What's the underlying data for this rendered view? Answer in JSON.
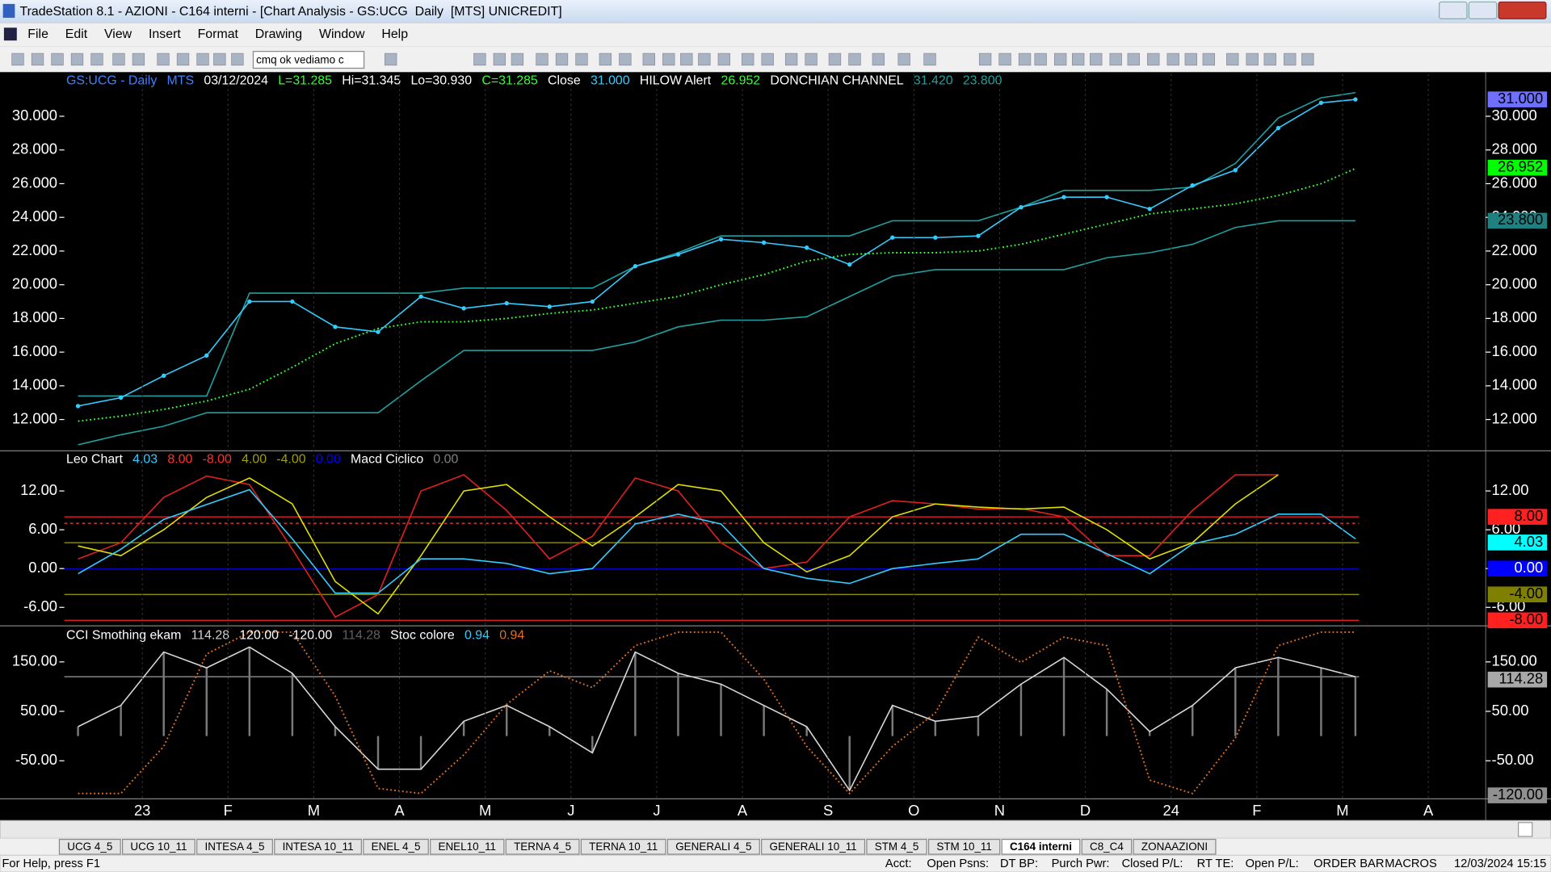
{
  "window": {
    "title": "TradeStation 8.1 - AZIONI - C164 interni - [Chart Analysis - GS:UCG  Daily  [MTS] UNICREDIT]"
  },
  "menu": [
    "File",
    "Edit",
    "View",
    "Insert",
    "Format",
    "Drawing",
    "Window",
    "Help"
  ],
  "toolbar": {
    "combobox": "cmq ok vediamo c"
  },
  "chart_data": [
    {
      "type": "line",
      "header": [
        {
          "text": "GS:UCG - Daily",
          "color": "#4080ff"
        },
        {
          "text": "MTS",
          "color": "#4080ff"
        },
        {
          "text": "03/12/2024",
          "color": "#ffffff"
        },
        {
          "text": "L=31.285",
          "color": "#33ff33"
        },
        {
          "text": "Hi=31.345",
          "color": "#ffffff"
        },
        {
          "text": "Lo=30.930",
          "color": "#ffffff"
        },
        {
          "text": "C=31.285",
          "color": "#33ff33"
        },
        {
          "text": "Close",
          "color": "#ffffff"
        },
        {
          "text": "31.000",
          "color": "#33ccff"
        },
        {
          "text": "HILOW Alert",
          "color": "#ffffff"
        },
        {
          "text": "26.952",
          "color": "#33ff33"
        },
        {
          "text": "DONCHIAN CHANNEL",
          "color": "#ffffff"
        },
        {
          "text": "31.420",
          "color": "#20a0a0"
        },
        {
          "text": "23.800",
          "color": "#20a0a0"
        }
      ],
      "x": [
        -0.75,
        -0.25,
        0.25,
        0.75,
        1.25,
        1.75,
        2.25,
        2.75,
        3.25,
        3.75,
        4.25,
        4.75,
        5.25,
        5.75,
        6.25,
        6.75,
        7.25,
        7.75,
        8.25,
        8.75,
        9.25,
        9.75,
        10.25,
        10.75,
        11.25,
        11.75,
        12.25,
        12.75,
        13.25,
        13.75,
        14.15
      ],
      "xlim": [
        -0.91,
        15.67
      ],
      "ylim": [
        10.2,
        32.5
      ],
      "yticks": [
        {
          "value": 12,
          "label": "12.000"
        },
        {
          "value": 14,
          "label": "14.000"
        },
        {
          "value": 16,
          "label": "16.000"
        },
        {
          "value": 18,
          "label": "18.000"
        },
        {
          "value": 20,
          "label": "20.000"
        },
        {
          "value": 22,
          "label": "22.000"
        },
        {
          "value": 24,
          "label": "24.000"
        },
        {
          "value": 26,
          "label": "26.000"
        },
        {
          "value": 28,
          "label": "28.000"
        },
        {
          "value": 30,
          "label": "30.000"
        }
      ],
      "series": [
        {
          "name": "DONCHIAN CHANNEL",
          "color": "#20a0a0",
          "values": [
            13.4,
            13.4,
            13.4,
            13.4,
            19.5,
            19.5,
            19.5,
            19.5,
            19.5,
            19.8,
            19.8,
            19.8,
            19.8,
            21.1,
            21.9,
            22.9,
            22.9,
            22.9,
            22.9,
            23.8,
            23.8,
            23.8,
            24.6,
            25.6,
            25.6,
            25.6,
            25.8,
            27.2,
            29.9,
            31.1,
            31.4
          ]
        },
        {
          "color": "#20a0a0",
          "values": [
            10.5,
            11.1,
            11.6,
            12.4,
            12.4,
            12.4,
            12.4,
            12.4,
            14.3,
            16.1,
            16.1,
            16.1,
            16.1,
            16.6,
            17.5,
            17.9,
            17.9,
            18.1,
            19.3,
            20.5,
            20.9,
            20.9,
            20.9,
            20.9,
            21.6,
            21.9,
            22.4,
            23.4,
            23.8,
            23.8,
            23.8
          ]
        },
        {
          "name": "HILOW Alert",
          "color": "#33ff33",
          "dash": true,
          "values": [
            11.9,
            12.2,
            12.6,
            13.1,
            13.8,
            15.1,
            16.5,
            17.4,
            17.8,
            17.8,
            18.0,
            18.3,
            18.5,
            18.9,
            19.3,
            20.0,
            20.6,
            21.4,
            21.8,
            21.9,
            21.9,
            22.0,
            22.4,
            23.0,
            23.6,
            24.2,
            24.5,
            24.8,
            25.3,
            26.0,
            26.9
          ]
        },
        {
          "name": "Close",
          "color": "#33ccff",
          "markers": true,
          "values": [
            12.8,
            13.3,
            14.6,
            15.8,
            19.0,
            19.0,
            17.5,
            17.2,
            19.3,
            18.6,
            18.9,
            18.7,
            19.0,
            21.1,
            21.8,
            22.7,
            22.5,
            22.2,
            21.2,
            22.8,
            22.8,
            22.9,
            24.6,
            25.2,
            25.2,
            24.5,
            25.9,
            26.8,
            29.3,
            30.8,
            31.0
          ]
        }
      ],
      "right_labels": [
        {
          "value": 31.0,
          "label": "31.000",
          "color": "#7070ff"
        },
        {
          "value": 26.952,
          "label": "26.952",
          "color": "#00ff00"
        },
        {
          "value": 23.8,
          "label": "23.800",
          "color": "#208080"
        }
      ]
    },
    {
      "type": "line",
      "header": [
        {
          "text": "Leo Chart",
          "color": "#ffffff"
        },
        {
          "text": "4.03",
          "color": "#33ccff"
        },
        {
          "text": "8.00",
          "color": "#ff3030"
        },
        {
          "text": "-8.00",
          "color": "#ff3030"
        },
        {
          "text": "4.00",
          "color": "#a0a000"
        },
        {
          "text": "-4.00",
          "color": "#a0a000"
        },
        {
          "text": "0.00",
          "color": "#0000ff"
        },
        {
          "text": "Macd Ciclico",
          "color": "#ffffff"
        },
        {
          "text": "0.00",
          "color": "#808080"
        }
      ],
      "x": [
        -0.75,
        -0.25,
        0.25,
        0.75,
        1.25,
        1.75,
        2.25,
        2.75,
        3.25,
        3.75,
        4.25,
        4.75,
        5.25,
        5.75,
        6.25,
        6.75,
        7.25,
        7.75,
        8.25,
        8.75,
        9.25,
        9.75,
        10.25,
        10.75,
        11.25,
        11.75,
        12.25,
        12.75,
        13.25,
        13.75,
        14.15
      ],
      "xlim": [
        -0.91,
        15.67
      ],
      "ylim": [
        -8.7,
        17.9
      ],
      "yticks": [
        {
          "value": -6,
          "label": "-6.00"
        },
        {
          "value": 0,
          "label": "0.00"
        },
        {
          "value": 6,
          "label": "6.00"
        },
        {
          "value": 12,
          "label": "12.00"
        }
      ],
      "levels": [
        {
          "value": 8,
          "color": "#ff2020"
        },
        {
          "value": 7,
          "color": "#ff4040",
          "dash": true
        },
        {
          "value": 4,
          "color": "#a0a000"
        },
        {
          "value": 0,
          "color": "#0000ff"
        },
        {
          "value": -4,
          "color": "#a0a000"
        },
        {
          "value": -8,
          "color": "#ff2020"
        }
      ],
      "series": [
        {
          "name": "Macd Ciclico",
          "color": "#e02020",
          "values": [
            1.5,
            4,
            11,
            14.3,
            13,
            3,
            -7.5,
            -4,
            12,
            14.5,
            9,
            1.5,
            5,
            14,
            12,
            4,
            0,
            1,
            8,
            10.5,
            10,
            9.2,
            9.3,
            8,
            2,
            2,
            9,
            14.5,
            14.5,
            null,
            null
          ]
        },
        {
          "color": "#e0e000",
          "values": [
            3.5,
            2,
            6,
            11,
            14,
            10,
            -2,
            -7,
            2,
            12,
            13,
            8,
            3.5,
            8,
            13,
            12,
            4,
            -0.5,
            2,
            8,
            10,
            9.5,
            9.2,
            9.5,
            6,
            1.5,
            4,
            10,
            14.5,
            null,
            null
          ]
        },
        {
          "name": "Leo Chart",
          "color": "#33ccff",
          "values": [
            -0.8,
            3,
            7.6,
            9.9,
            12.2,
            4.6,
            -3.8,
            -3.8,
            1.5,
            1.5,
            0.8,
            -0.8,
            0,
            6.9,
            8.4,
            6.9,
            0,
            -1.5,
            -2.3,
            0,
            0.8,
            1.5,
            5.3,
            5.3,
            2.3,
            -0.8,
            3.8,
            5.3,
            8.4,
            8.4,
            4.6
          ]
        }
      ],
      "right_labels": [
        {
          "value": 8,
          "label": "8.00",
          "color": "#ff2020"
        },
        {
          "value": 4.03,
          "label": "4.03",
          "color": "#00ffff"
        },
        {
          "value": 0,
          "label": "0.00",
          "color": "#0000ff"
        },
        {
          "value": -4,
          "label": "-4.00",
          "color": "#808000"
        },
        {
          "value": -8,
          "label": "-8.00",
          "color": "#ff2020"
        }
      ]
    },
    {
      "type": "line",
      "header": [
        {
          "text": "CCI Smothing ekam",
          "color": "#ffffff"
        },
        {
          "text": "114.28",
          "color": "#d0d0d0"
        },
        {
          "text": "120.00",
          "color": "#ffffff"
        },
        {
          "text": "-120.00",
          "color": "#ffffff"
        },
        {
          "text": "114.28",
          "color": "#606060"
        },
        {
          "text": "Stoc colore",
          "color": "#ffffff"
        },
        {
          "text": "0.94",
          "color": "#33ccff"
        },
        {
          "text": "0.94",
          "color": "#e07020"
        }
      ],
      "x": [
        -0.75,
        -0.25,
        0.25,
        0.75,
        1.25,
        1.75,
        2.25,
        2.75,
        3.25,
        3.75,
        4.25,
        4.75,
        5.25,
        5.75,
        6.25,
        6.75,
        7.25,
        7.75,
        8.25,
        8.75,
        9.25,
        9.75,
        10.25,
        10.75,
        11.25,
        11.75,
        12.25,
        12.75,
        13.25,
        13.75,
        14.15
      ],
      "xlim": [
        -0.91,
        15.67
      ],
      "xticks": [
        {
          "value": 0,
          "label": "23"
        },
        {
          "value": 1,
          "label": "F"
        },
        {
          "value": 2,
          "label": "M"
        },
        {
          "value": 3,
          "label": "A"
        },
        {
          "value": 4,
          "label": "M"
        },
        {
          "value": 5,
          "label": "J"
        },
        {
          "value": 6,
          "label": "J"
        },
        {
          "value": 7,
          "label": "A"
        },
        {
          "value": 8,
          "label": "S"
        },
        {
          "value": 9,
          "label": "O"
        },
        {
          "value": 10,
          "label": "N"
        },
        {
          "value": 11,
          "label": "D"
        },
        {
          "value": 12,
          "label": "24"
        },
        {
          "value": 13,
          "label": "F"
        },
        {
          "value": 14,
          "label": "M"
        },
        {
          "value": 15,
          "label": "A"
        }
      ],
      "ylim": [
        -123,
        217
      ],
      "y2lim": [
        0,
        1
      ],
      "yticks": [
        {
          "value": -50,
          "label": "-50.00"
        },
        {
          "value": 50,
          "label": "50.00"
        },
        {
          "value": 150,
          "label": "150.00"
        }
      ],
      "levels": [
        {
          "value": 120,
          "color": "#a0a0a0"
        }
      ],
      "series": [
        {
          "name": "CCI Smothing ekam",
          "color": "#d8d8d8",
          "histogram": true,
          "values": [
            19,
            62,
            170,
            138,
            180,
            127,
            19,
            -67,
            -67,
            30,
            62,
            19,
            -34,
            170,
            127,
            105,
            62,
            19,
            -110,
            62,
            30,
            40,
            105,
            159,
            95,
            9,
            62,
            138,
            159,
            138,
            120
          ]
        },
        {
          "name": "Stoc colore",
          "color": "#e07020",
          "axis": "y2",
          "dash": true,
          "values": [
            0.02,
            0.02,
            0.3,
            0.85,
            0.98,
            0.98,
            0.6,
            0.05,
            0.02,
            0.25,
            0.55,
            0.75,
            0.65,
            0.9,
            0.98,
            0.98,
            0.7,
            0.3,
            0.02,
            0.3,
            0.5,
            0.95,
            0.8,
            0.95,
            0.9,
            0.1,
            0.02,
            0.35,
            0.9,
            0.98,
            0.98
          ]
        }
      ],
      "right_labels": [
        {
          "value": 114.28,
          "label": "114.28",
          "color": "#a8a8a8"
        },
        {
          "value": -120,
          "label": "-120.00",
          "color": "#909090"
        }
      ]
    }
  ],
  "tabs": [
    {
      "text": "UCG 4_5"
    },
    {
      "text": "UCG 10_11"
    },
    {
      "text": "INTESA 4_5"
    },
    {
      "text": "INTESA 10_11"
    },
    {
      "text": "ENEL 4_5"
    },
    {
      "text": "ENEL10_11"
    },
    {
      "text": "TERNA 4_5"
    },
    {
      "text": "TERNA 10_11"
    },
    {
      "text": "GENERALI 4_5"
    },
    {
      "text": "GENERALI 10_11"
    },
    {
      "text": "STM 4_5"
    },
    {
      "text": "STM 10_11"
    },
    {
      "text": "C164 interni",
      "active": true
    },
    {
      "text": "C8_C4"
    },
    {
      "text": "ZONAAZIONI"
    }
  ],
  "status_bar": [
    {
      "text": "For Help, press F1"
    },
    {
      "text": "Acct:"
    },
    {
      "text": "Open Psns:"
    },
    {
      "text": "DT BP:"
    },
    {
      "text": "Purch Pwr:"
    },
    {
      "text": "Closed P/L:"
    },
    {
      "text": "RT TE:"
    },
    {
      "text": "Open P/L:"
    },
    {
      "text": "ORDER BAR",
      "color": "#008000"
    },
    {
      "text": "MACROS",
      "color": "#008000"
    },
    {
      "text": "12/03/2024 15:15"
    }
  ]
}
